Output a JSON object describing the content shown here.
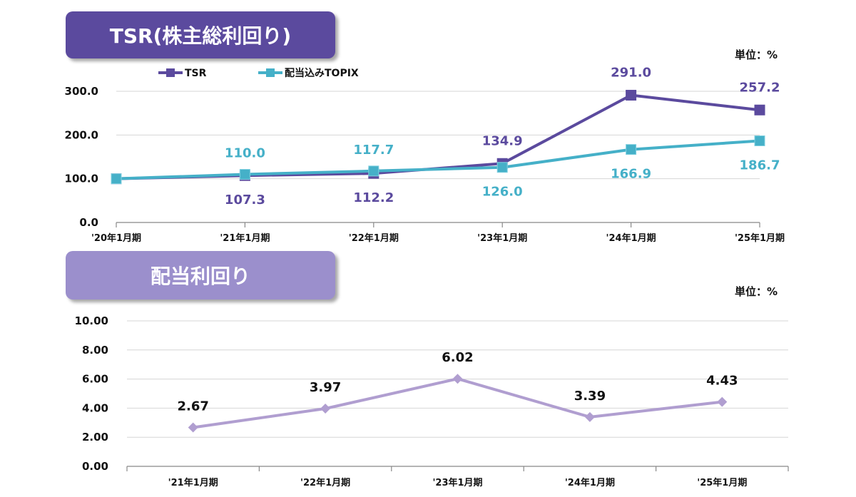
{
  "tsr_panel": {
    "title": "TSR(株主総利回り)",
    "unit": "単位：%"
  },
  "dividend_panel": {
    "title": "配当利回り",
    "unit": "単位：%"
  },
  "colors": {
    "tsr": "#5b4a9e",
    "topix": "#45b0c8",
    "dividend": "#b09ed0"
  },
  "chart_data": [
    {
      "type": "line",
      "title": "TSR(株主総利回り)",
      "categories": [
        "'20年1月期",
        "'21年1月期",
        "'22年1月期",
        "'23年1月期",
        "'24年1月期",
        "'25年1月期"
      ],
      "y_ticks": [
        "0.0",
        "100.0",
        "200.0",
        "300.0"
      ],
      "ylim": [
        0,
        300
      ],
      "legend_position": "top-left",
      "series": [
        {
          "name": "TSR",
          "values": [
            100,
            107.3,
            112.2,
            134.9,
            291.0,
            257.2
          ],
          "labels": [
            "",
            "107.3",
            "112.2",
            "134.9",
            "291.0",
            "257.2"
          ]
        },
        {
          "name": "配当込みTOPIX",
          "values": [
            100,
            110.0,
            117.7,
            126.0,
            166.9,
            186.7
          ],
          "labels": [
            "",
            "110.0",
            "117.7",
            "126.0",
            "166.9",
            "186.7"
          ]
        }
      ]
    },
    {
      "type": "line",
      "title": "配当利回り",
      "categories": [
        "'21年1月期",
        "'22年1月期",
        "'23年1月期",
        "'24年1月期",
        "'25年1月期"
      ],
      "y_ticks": [
        "0.00",
        "2.00",
        "4.00",
        "6.00",
        "8.00",
        "10.00"
      ],
      "ylim": [
        0,
        10
      ],
      "series": [
        {
          "values": [
            2.67,
            3.97,
            6.02,
            3.39,
            4.43
          ],
          "labels": [
            "2.67",
            "3.97",
            "6.02",
            "3.39",
            "4.43"
          ]
        }
      ]
    }
  ]
}
